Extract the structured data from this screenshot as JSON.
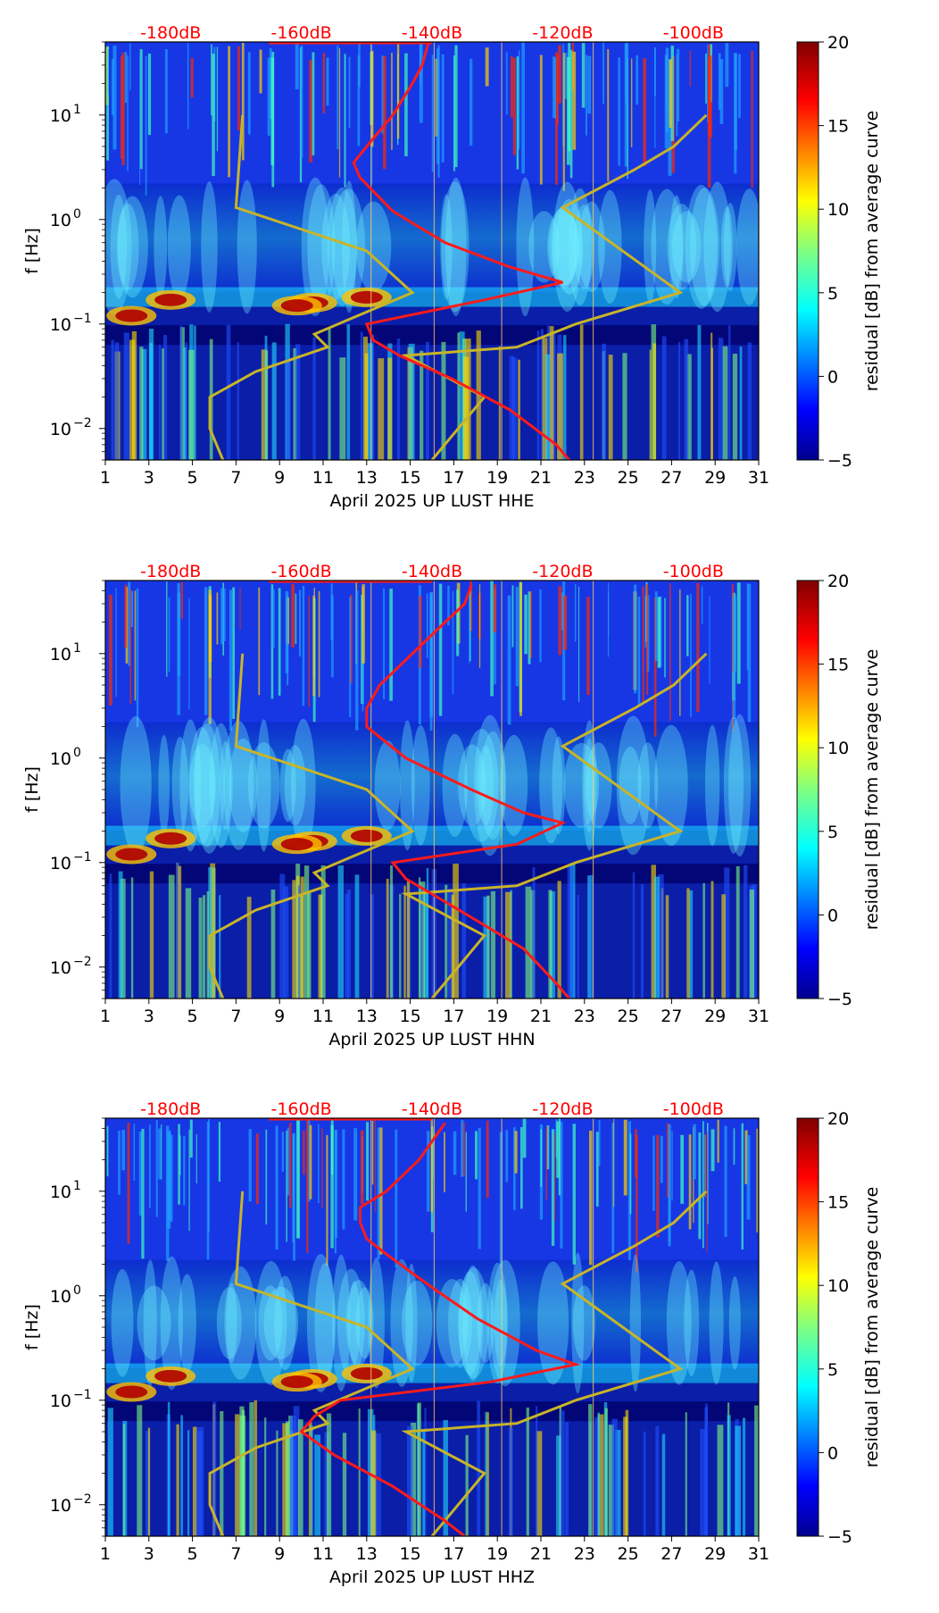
{
  "figure": {
    "shared": {
      "x_ticks": [
        "1",
        "3",
        "5",
        "7",
        "9",
        "11",
        "13",
        "15",
        "17",
        "19",
        "21",
        "23",
        "25",
        "27",
        "29",
        "31"
      ],
      "y_ticks": [
        "10",
        "10",
        "10",
        "10"
      ],
      "y_tick_exponents": [
        "1",
        "0",
        "−1",
        "−2"
      ],
      "ylabel": "f [Hz]",
      "db_labels": [
        "-180dB",
        "-160dB",
        "-140dB",
        "-120dB",
        "-100dB"
      ],
      "colorbar_label": "residual [dB] from average curve",
      "colorbar_ticks": [
        "20",
        "15",
        "10",
        "5",
        "0",
        "−5"
      ]
    },
    "colors": {
      "median_curve": "#ff1a1a",
      "noise_model": "#c8b428",
      "db_text": "#ff0000"
    }
  },
  "chart_data": [
    {
      "type": "heatmap",
      "channel": "HHE",
      "xlabel": "April 2025 UP LUST  HHE",
      "ylabel": "f [Hz]",
      "xlim": [
        1,
        31
      ],
      "ylim_hz": [
        0.005,
        50
      ],
      "y_scale": "log",
      "colorbar": {
        "label": "residual [dB] from average curve",
        "range": [
          -5,
          20
        ],
        "colormap": "jet"
      },
      "top_axis_db": [
        -180,
        -160,
        -140,
        -120,
        -100
      ],
      "median_psd_curve": {
        "units": "dB vs Hz",
        "points": [
          [
            -140.5,
            50
          ],
          [
            -141.5,
            30
          ],
          [
            -143,
            20
          ],
          [
            -146,
            10
          ],
          [
            -150,
            5
          ],
          [
            -152,
            3.5
          ],
          [
            -151,
            2.5
          ],
          [
            -146,
            1.2
          ],
          [
            -138,
            0.6
          ],
          [
            -128,
            0.35
          ],
          [
            -120,
            0.25
          ],
          [
            -132,
            0.17
          ],
          [
            -150,
            0.1
          ],
          [
            -149,
            0.07
          ],
          [
            -145,
            0.05
          ],
          [
            -137,
            0.03
          ],
          [
            -128,
            0.015
          ],
          [
            -121,
            0.007
          ],
          [
            -119,
            0.005
          ]
        ]
      },
      "noise_model_curves": [
        {
          "name": "low noise model",
          "points": [
            [
              -172,
              0.005
            ],
            [
              -174,
              0.01
            ],
            [
              -174,
              0.02
            ],
            [
              -167,
              0.035
            ],
            [
              -156,
              0.06
            ],
            [
              -158,
              0.08
            ],
            [
              -143,
              0.2
            ],
            [
              -150,
              0.5
            ],
            [
              -170,
              1.3
            ],
            [
              -169,
              10
            ]
          ]
        },
        {
          "name": "high noise model",
          "points": [
            [
              -140,
              0.005
            ],
            [
              -136,
              0.01
            ],
            [
              -132,
              0.02
            ],
            [
              -144,
              0.05
            ],
            [
              -127,
              0.06
            ],
            [
              -118,
              0.1
            ],
            [
              -102,
              0.2
            ],
            [
              -120,
              1.3
            ],
            [
              -109,
              3
            ],
            [
              -103,
              5
            ],
            [
              -98,
              10
            ]
          ]
        }
      ]
    },
    {
      "type": "heatmap",
      "channel": "HHN",
      "xlabel": "April 2025 UP LUST  HHN",
      "ylabel": "f [Hz]",
      "xlim": [
        1,
        31
      ],
      "ylim_hz": [
        0.005,
        50
      ],
      "y_scale": "log",
      "colorbar": {
        "label": "residual [dB] from average curve",
        "range": [
          -5,
          20
        ],
        "colormap": "jet"
      },
      "top_axis_db": [
        -180,
        -160,
        -140,
        -120,
        -100
      ],
      "median_psd_curve": {
        "units": "dB vs Hz",
        "points": [
          [
            -134,
            45
          ],
          [
            -135,
            30
          ],
          [
            -138,
            20
          ],
          [
            -143,
            10
          ],
          [
            -148,
            5
          ],
          [
            -150,
            3
          ],
          [
            -150,
            2
          ],
          [
            -144,
            1
          ],
          [
            -134,
            0.5
          ],
          [
            -126,
            0.3
          ],
          [
            -120,
            0.24
          ],
          [
            -127,
            0.15
          ],
          [
            -146,
            0.1
          ],
          [
            -144,
            0.07
          ],
          [
            -140,
            0.05
          ],
          [
            -134,
            0.03
          ],
          [
            -126,
            0.015
          ],
          [
            -121,
            0.007
          ],
          [
            -119,
            0.005
          ]
        ]
      },
      "noise_model_curves": [
        {
          "name": "low noise model",
          "points": [
            [
              -172,
              0.005
            ],
            [
              -174,
              0.01
            ],
            [
              -174,
              0.02
            ],
            [
              -167,
              0.035
            ],
            [
              -156,
              0.06
            ],
            [
              -158,
              0.08
            ],
            [
              -143,
              0.2
            ],
            [
              -150,
              0.5
            ],
            [
              -170,
              1.3
            ],
            [
              -169,
              10
            ]
          ]
        },
        {
          "name": "high noise model",
          "points": [
            [
              -140,
              0.005
            ],
            [
              -136,
              0.01
            ],
            [
              -132,
              0.02
            ],
            [
              -144,
              0.05
            ],
            [
              -127,
              0.06
            ],
            [
              -118,
              0.1
            ],
            [
              -102,
              0.2
            ],
            [
              -120,
              1.3
            ],
            [
              -109,
              3
            ],
            [
              -103,
              5
            ],
            [
              -98,
              10
            ]
          ]
        }
      ]
    },
    {
      "type": "heatmap",
      "channel": "HHZ",
      "xlabel": "April 2025 UP LUST  HHZ",
      "ylabel": "f [Hz]",
      "xlim": [
        1,
        31
      ],
      "ylim_hz": [
        0.005,
        50
      ],
      "y_scale": "log",
      "colorbar": {
        "label": "residual [dB] from average curve",
        "range": [
          -5,
          20
        ],
        "colormap": "jet"
      },
      "top_axis_db": [
        -180,
        -160,
        -140,
        -120,
        -100
      ],
      "median_psd_curve": {
        "units": "dB vs Hz",
        "points": [
          [
            -138,
            45
          ],
          [
            -140,
            30
          ],
          [
            -142,
            20
          ],
          [
            -147,
            10
          ],
          [
            -151,
            7
          ],
          [
            -151,
            5
          ],
          [
            -150,
            3.5
          ],
          [
            -147,
            2.5
          ],
          [
            -140,
            1.2
          ],
          [
            -133,
            0.6
          ],
          [
            -124,
            0.3
          ],
          [
            -118,
            0.22
          ],
          [
            -131,
            0.15
          ],
          [
            -154,
            0.1
          ],
          [
            -158,
            0.07
          ],
          [
            -160,
            0.05
          ],
          [
            -155,
            0.03
          ],
          [
            -146,
            0.015
          ],
          [
            -138,
            0.007
          ],
          [
            -135,
            0.005
          ]
        ]
      },
      "noise_model_curves": [
        {
          "name": "low noise model",
          "points": [
            [
              -172,
              0.005
            ],
            [
              -174,
              0.01
            ],
            [
              -174,
              0.02
            ],
            [
              -167,
              0.035
            ],
            [
              -156,
              0.06
            ],
            [
              -158,
              0.08
            ],
            [
              -143,
              0.2
            ],
            [
              -150,
              0.5
            ],
            [
              -170,
              1.3
            ],
            [
              -169,
              10
            ]
          ]
        },
        {
          "name": "high noise model",
          "points": [
            [
              -140,
              0.005
            ],
            [
              -136,
              0.01
            ],
            [
              -132,
              0.02
            ],
            [
              -144,
              0.05
            ],
            [
              -127,
              0.06
            ],
            [
              -118,
              0.1
            ],
            [
              -102,
              0.2
            ],
            [
              -120,
              1.3
            ],
            [
              -109,
              3
            ],
            [
              -103,
              5
            ],
            [
              -98,
              10
            ]
          ]
        }
      ]
    }
  ]
}
